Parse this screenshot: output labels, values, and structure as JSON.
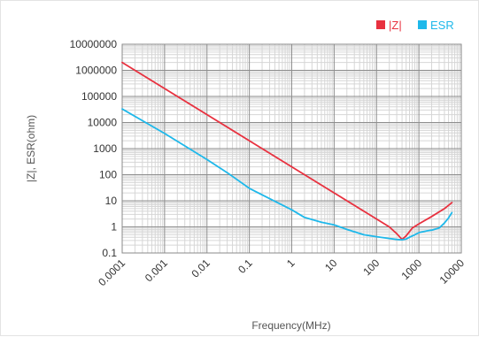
{
  "chart_data": {
    "type": "line",
    "title": "",
    "xlabel": "Frequency(MHz)",
    "ylabel": "|Z|, ESR(ohm)",
    "x_scale": "log",
    "y_scale": "log",
    "xlim": [
      0.0001,
      10000
    ],
    "ylim": [
      0.1,
      10000000
    ],
    "x_ticks": [
      "0.0001",
      "0.001",
      "0.01",
      "0.1",
      "1",
      "10",
      "100",
      "1000",
      "10000"
    ],
    "y_ticks": [
      "10000000",
      "1000000",
      "100000",
      "10000",
      "1000",
      "100",
      "10",
      "1",
      "0.1"
    ],
    "grid": true,
    "legend_position": "top-right",
    "series": [
      {
        "name": "|Z|",
        "color": "#e8313f",
        "x": [
          0.0001,
          0.001,
          0.01,
          0.1,
          1,
          10,
          100,
          200,
          300,
          400,
          500,
          700,
          1000,
          2000,
          4000,
          6000
        ],
        "y": [
          2000000,
          200000,
          20000,
          2000,
          200,
          20,
          2,
          1,
          0.55,
          0.33,
          0.45,
          0.9,
          1.3,
          2.5,
          5,
          8.5
        ]
      },
      {
        "name": "ESR",
        "color": "#1eb8ea",
        "x": [
          0.0001,
          0.001,
          0.01,
          0.03,
          0.1,
          0.5,
          1,
          2,
          5,
          10,
          20,
          50,
          100,
          200,
          300,
          400,
          500,
          600,
          800,
          1000,
          1500,
          2000,
          3000,
          4000,
          5000,
          6000
        ],
        "y": [
          33000,
          3800,
          380,
          120,
          30,
          8,
          4.5,
          2.3,
          1.5,
          1.2,
          0.8,
          0.5,
          0.42,
          0.36,
          0.33,
          0.32,
          0.34,
          0.4,
          0.5,
          0.6,
          0.7,
          0.75,
          0.9,
          1.4,
          2.2,
          3.5
        ]
      }
    ]
  }
}
